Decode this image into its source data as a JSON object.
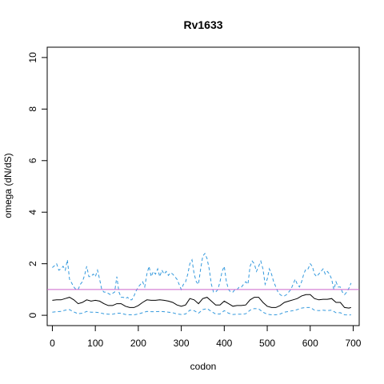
{
  "chart_data": {
    "type": "line",
    "title": "Rv1633",
    "xlabel": "codon",
    "ylabel": "omega (dN/dS)",
    "xlim": [
      -12,
      714
    ],
    "ylim": [
      -0.4,
      10.4
    ],
    "xticks": [
      0,
      100,
      200,
      300,
      400,
      500,
      600,
      700
    ],
    "yticks": [
      0,
      2,
      4,
      6,
      8,
      10
    ],
    "xtick_labels": [
      "0",
      "100",
      "200",
      "300",
      "400",
      "500",
      "600",
      "700"
    ],
    "ytick_labels": [
      "0",
      "2",
      "4",
      "6",
      "8",
      "10"
    ],
    "reference_line": {
      "y": 1.0,
      "color": "#cc66cc"
    },
    "grid": false,
    "series": [
      {
        "role": "upper",
        "color": "#3399dd",
        "style": "dashed",
        "x": [
          0,
          10,
          15,
          20,
          25,
          30,
          35,
          40,
          45,
          50,
          55,
          60,
          65,
          70,
          75,
          80,
          85,
          90,
          95,
          100,
          105,
          110,
          115,
          120,
          125,
          130,
          135,
          140,
          145,
          150,
          155,
          160,
          165,
          170,
          175,
          180,
          185,
          190,
          195,
          200,
          205,
          210,
          215,
          220,
          225,
          230,
          235,
          240,
          245,
          250,
          255,
          260,
          265,
          270,
          275,
          280,
          285,
          290,
          295,
          300,
          305,
          310,
          315,
          320,
          325,
          330,
          335,
          340,
          345,
          350,
          355,
          360,
          365,
          370,
          375,
          380,
          385,
          390,
          395,
          400,
          405,
          410,
          415,
          420,
          425,
          430,
          435,
          440,
          445,
          450,
          455,
          460,
          465,
          470,
          475,
          480,
          485,
          490,
          495,
          500,
          505,
          510,
          515,
          520,
          525,
          530,
          535,
          540,
          545,
          550,
          555,
          560,
          565,
          570,
          575,
          580,
          585,
          590,
          595,
          600,
          605,
          610,
          615,
          620,
          625,
          630,
          635,
          640,
          645,
          650,
          655,
          660,
          665,
          670,
          675,
          680,
          685,
          690,
          695
        ],
        "values": [
          1.85,
          2.0,
          1.75,
          1.8,
          1.9,
          1.75,
          2.15,
          1.4,
          1.25,
          1.1,
          1.0,
          1.0,
          1.2,
          1.3,
          1.55,
          1.9,
          1.5,
          1.5,
          1.6,
          1.5,
          1.75,
          1.4,
          1.0,
          0.9,
          0.9,
          0.85,
          0.8,
          0.85,
          0.9,
          1.5,
          0.9,
          0.7,
          0.7,
          0.65,
          0.7,
          0.6,
          0.6,
          0.75,
          0.95,
          1.1,
          1.2,
          1.3,
          1.1,
          1.6,
          1.9,
          1.5,
          1.7,
          1.6,
          1.8,
          1.5,
          1.75,
          1.6,
          1.7,
          1.55,
          1.65,
          1.6,
          1.5,
          1.4,
          1.2,
          1.0,
          1.2,
          1.3,
          1.6,
          2.0,
          2.15,
          1.6,
          1.3,
          1.2,
          1.8,
          2.3,
          2.4,
          2.2,
          1.8,
          1.2,
          0.9,
          0.9,
          1.0,
          1.3,
          1.7,
          1.9,
          1.3,
          1.0,
          0.9,
          0.9,
          1.0,
          1.0,
          1.1,
          1.1,
          1.2,
          1.3,
          1.2,
          1.9,
          2.1,
          2.0,
          1.7,
          1.9,
          2.1,
          1.8,
          1.2,
          1.4,
          1.8,
          1.6,
          1.3,
          1.1,
          0.9,
          0.8,
          0.75,
          0.75,
          0.8,
          0.9,
          1.0,
          1.2,
          1.4,
          1.2,
          1.1,
          1.3,
          1.6,
          1.8,
          1.8,
          2.0,
          1.9,
          1.6,
          1.5,
          1.6,
          1.7,
          1.8,
          1.6,
          1.7,
          1.6,
          1.4,
          1.0,
          1.3,
          1.1,
          1.1,
          0.9,
          0.8,
          0.9,
          1.05,
          1.25
        ]
      },
      {
        "role": "estimate",
        "color": "#000000",
        "style": "solid",
        "x": [
          0,
          10,
          20,
          30,
          40,
          50,
          60,
          70,
          80,
          90,
          100,
          110,
          120,
          130,
          140,
          150,
          160,
          170,
          180,
          190,
          200,
          210,
          220,
          230,
          240,
          250,
          260,
          270,
          280,
          290,
          300,
          310,
          320,
          330,
          340,
          350,
          360,
          370,
          380,
          390,
          400,
          410,
          420,
          430,
          440,
          450,
          460,
          470,
          480,
          490,
          500,
          510,
          520,
          530,
          540,
          550,
          560,
          570,
          580,
          590,
          600,
          610,
          620,
          630,
          640,
          650,
          660,
          670,
          680,
          690,
          695
        ],
        "values": [
          0.58,
          0.6,
          0.6,
          0.65,
          0.7,
          0.6,
          0.45,
          0.5,
          0.6,
          0.55,
          0.58,
          0.55,
          0.45,
          0.38,
          0.38,
          0.45,
          0.45,
          0.35,
          0.3,
          0.3,
          0.38,
          0.5,
          0.6,
          0.58,
          0.58,
          0.6,
          0.58,
          0.55,
          0.5,
          0.4,
          0.35,
          0.4,
          0.65,
          0.6,
          0.45,
          0.65,
          0.7,
          0.55,
          0.4,
          0.4,
          0.55,
          0.45,
          0.35,
          0.38,
          0.38,
          0.4,
          0.6,
          0.7,
          0.7,
          0.5,
          0.35,
          0.3,
          0.3,
          0.38,
          0.5,
          0.55,
          0.6,
          0.65,
          0.75,
          0.8,
          0.8,
          0.65,
          0.6,
          0.62,
          0.62,
          0.65,
          0.5,
          0.5,
          0.3,
          0.28,
          0.3
        ]
      },
      {
        "role": "lower",
        "color": "#3399dd",
        "style": "dashed",
        "x": [
          0,
          10,
          20,
          30,
          40,
          50,
          60,
          70,
          80,
          90,
          100,
          110,
          120,
          130,
          140,
          150,
          160,
          170,
          180,
          190,
          200,
          210,
          220,
          230,
          240,
          250,
          260,
          270,
          280,
          290,
          300,
          310,
          320,
          330,
          340,
          350,
          360,
          370,
          380,
          390,
          400,
          410,
          420,
          430,
          440,
          450,
          460,
          470,
          480,
          490,
          500,
          510,
          520,
          530,
          540,
          550,
          560,
          570,
          580,
          590,
          600,
          610,
          620,
          630,
          640,
          650,
          660,
          670,
          680,
          690,
          695
        ],
        "values": [
          0.12,
          0.14,
          0.15,
          0.2,
          0.22,
          0.13,
          0.06,
          0.08,
          0.15,
          0.12,
          0.12,
          0.1,
          0.06,
          0.04,
          0.04,
          0.08,
          0.08,
          0.03,
          0.02,
          0.02,
          0.05,
          0.1,
          0.15,
          0.14,
          0.14,
          0.15,
          0.14,
          0.12,
          0.1,
          0.05,
          0.03,
          0.05,
          0.2,
          0.18,
          0.08,
          0.22,
          0.26,
          0.15,
          0.05,
          0.05,
          0.18,
          0.08,
          0.03,
          0.04,
          0.04,
          0.06,
          0.2,
          0.26,
          0.25,
          0.12,
          0.04,
          0.02,
          0.02,
          0.05,
          0.12,
          0.15,
          0.18,
          0.22,
          0.28,
          0.3,
          0.3,
          0.2,
          0.18,
          0.2,
          0.18,
          0.2,
          0.1,
          0.1,
          0.02,
          0.01,
          0.02
        ]
      }
    ]
  }
}
